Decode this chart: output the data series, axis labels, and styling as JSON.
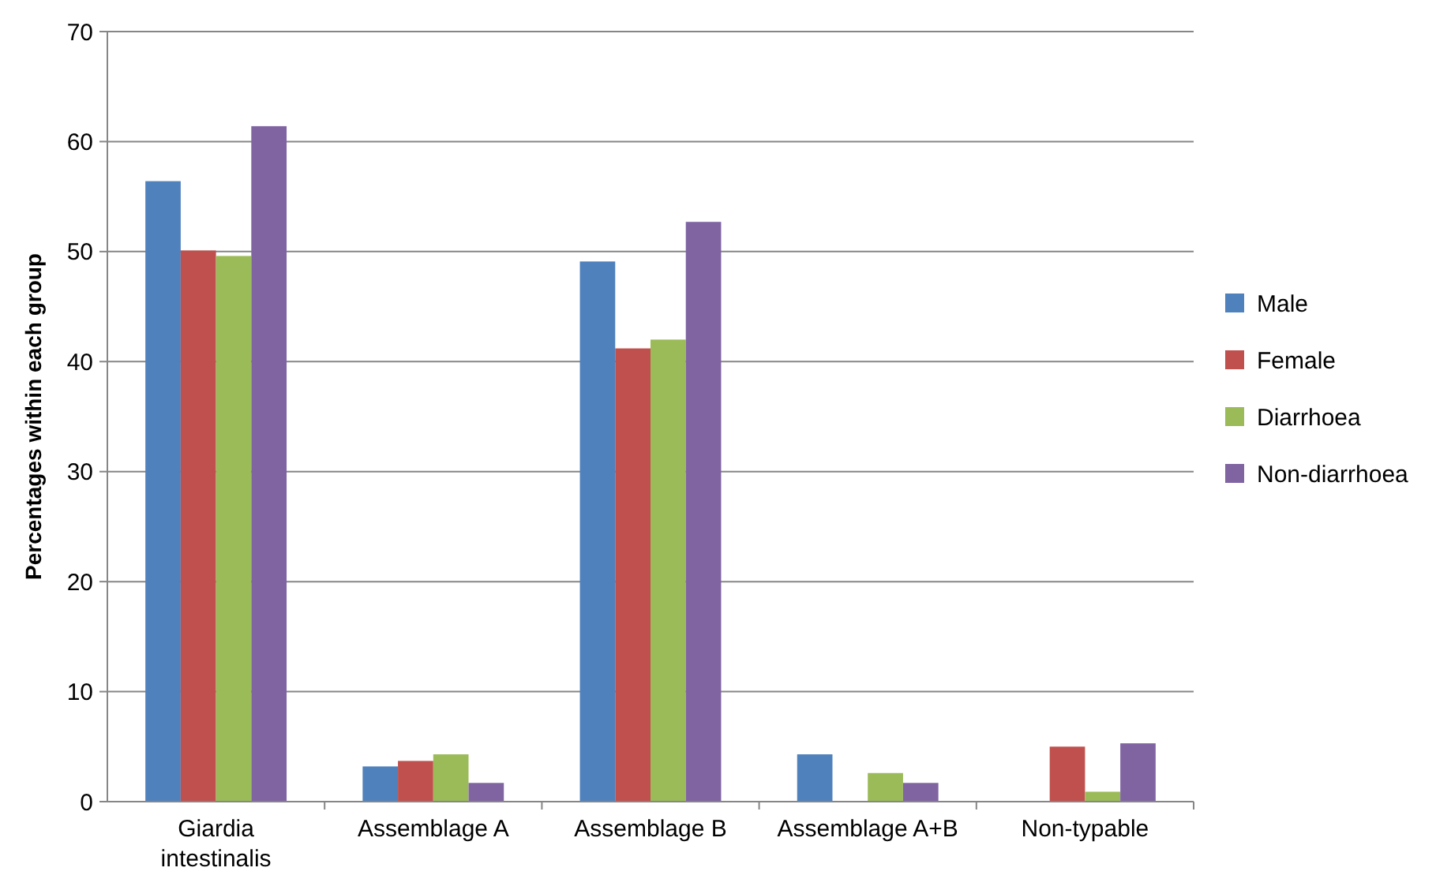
{
  "chart_data": {
    "type": "bar",
    "ylabel": "Percentages within each group",
    "categories": [
      "Giardia intestinalis",
      "Assemblage A",
      "Assemblage B",
      "Assemblage A+B",
      "Non-typable"
    ],
    "series": [
      {
        "name": "Male",
        "color": "#4f81bd",
        "values": [
          56.4,
          3.2,
          49.1,
          4.3,
          0
        ]
      },
      {
        "name": "Female",
        "color": "#c0504d",
        "values": [
          50.1,
          3.7,
          41.2,
          0,
          5.0
        ]
      },
      {
        "name": "Diarrhoea",
        "color": "#9bbb59",
        "values": [
          49.6,
          4.3,
          42.0,
          2.6,
          0.9
        ]
      },
      {
        "name": "Non-diarrhoea",
        "color": "#8064a2",
        "values": [
          61.4,
          1.7,
          52.7,
          1.7,
          5.3
        ]
      }
    ],
    "ylim": [
      0,
      70
    ],
    "yticks": [
      0,
      10,
      20,
      30,
      40,
      50,
      60,
      70
    ],
    "grid": "y",
    "legend": "right"
  }
}
